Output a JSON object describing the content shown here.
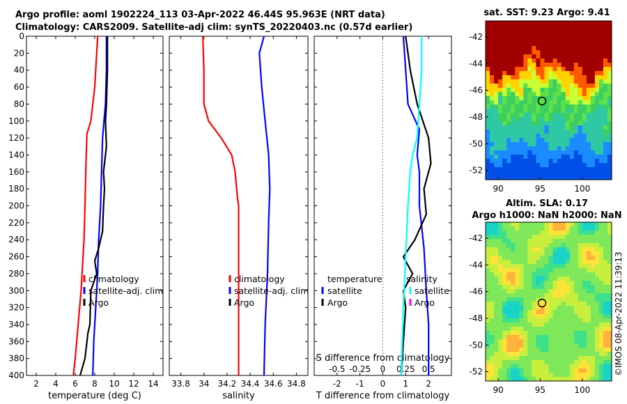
{
  "header": {
    "title_line1": "Argo profile: aoml 1902224_113 03-Apr-2022 46.44S 95.963E (NRT data)",
    "title_line2": "Climatology: CARS2009. Satellite-adj clim: synTS_20220403.nc (0.57d earlier)"
  },
  "colors": {
    "climatology": "#ff0000",
    "satellite": "#0000ff",
    "argo": "#000000",
    "argo_salinity": "#00ffff",
    "satellite_salinity_marker": "#ff00ff"
  },
  "footer": {
    "stamp": "©IMOS 08-Apr-2022 11:39:13"
  },
  "chart_data": [
    {
      "id": "temperature",
      "type": "line",
      "xlabel": "temperature (deg C)",
      "xlim": [
        1,
        15
      ],
      "xticks": [
        2,
        4,
        6,
        8,
        10,
        12,
        14
      ],
      "ylim": [
        0,
        400
      ],
      "yreversed": true,
      "yticks": [
        0,
        20,
        40,
        60,
        80,
        100,
        120,
        140,
        160,
        180,
        200,
        220,
        240,
        260,
        280,
        300,
        320,
        340,
        360,
        380,
        400
      ],
      "legend": [
        "climatology",
        "satellite-adj. clim",
        "Argo"
      ],
      "series": [
        {
          "name": "climatology",
          "color": "#ff0000",
          "points": [
            [
              8.3,
              0
            ],
            [
              8.2,
              20
            ],
            [
              8.1,
              40
            ],
            [
              8.0,
              60
            ],
            [
              7.8,
              80
            ],
            [
              7.6,
              100
            ],
            [
              7.2,
              115
            ],
            [
              7.1,
              150
            ],
            [
              7.0,
              200
            ],
            [
              6.9,
              240
            ],
            [
              6.8,
              260
            ],
            [
              6.6,
              300
            ],
            [
              6.3,
              340
            ],
            [
              6.0,
              380
            ],
            [
              5.8,
              400
            ]
          ]
        },
        {
          "name": "satellite-adj. clim",
          "color": "#0000ff",
          "points": [
            [
              9.2,
              0
            ],
            [
              9.2,
              40
            ],
            [
              9.1,
              80
            ],
            [
              8.8,
              120
            ],
            [
              8.7,
              160
            ],
            [
              8.6,
              200
            ],
            [
              8.4,
              240
            ],
            [
              8.3,
              280
            ],
            [
              8.1,
              320
            ],
            [
              7.9,
              360
            ],
            [
              7.8,
              400
            ]
          ]
        },
        {
          "name": "Argo",
          "color": "#000000",
          "points": [
            [
              9.3,
              0
            ],
            [
              9.3,
              40
            ],
            [
              9.2,
              80
            ],
            [
              9.1,
              100
            ],
            [
              9.2,
              130
            ],
            [
              8.9,
              160
            ],
            [
              9.0,
              180
            ],
            [
              8.9,
              200
            ],
            [
              8.8,
              230
            ],
            [
              8.4,
              250
            ],
            [
              8.0,
              265
            ],
            [
              8.2,
              280
            ],
            [
              7.6,
              300
            ],
            [
              7.5,
              340
            ],
            [
              7.3,
              350
            ],
            [
              7.0,
              380
            ],
            [
              6.5,
              400
            ]
          ]
        }
      ]
    },
    {
      "id": "salinity",
      "type": "line",
      "xlabel": "salinity",
      "xlim": [
        33.7,
        34.9
      ],
      "xticks": [
        33.8,
        34,
        34.2,
        34.4,
        34.6,
        34.8
      ],
      "ylim": [
        0,
        400
      ],
      "yreversed": true,
      "legend": [
        "climatology",
        "satellite-adj. clim",
        "Argo"
      ],
      "series": [
        {
          "name": "climatology",
          "color": "#ff0000",
          "points": [
            [
              33.99,
              0
            ],
            [
              34.0,
              40
            ],
            [
              34.0,
              80
            ],
            [
              34.04,
              100
            ],
            [
              34.15,
              120
            ],
            [
              34.24,
              140
            ],
            [
              34.27,
              160
            ],
            [
              34.29,
              190
            ],
            [
              34.3,
              200
            ],
            [
              34.3,
              250
            ],
            [
              34.3,
              400
            ]
          ]
        },
        {
          "name": "satellite-adj. clim",
          "color": "#0000ff",
          "points": [
            [
              34.52,
              0
            ],
            [
              34.48,
              20
            ],
            [
              34.5,
              60
            ],
            [
              34.53,
              100
            ],
            [
              34.56,
              140
            ],
            [
              34.57,
              180
            ],
            [
              34.56,
              220
            ],
            [
              34.55,
              280
            ],
            [
              34.53,
              340
            ],
            [
              34.52,
              400
            ]
          ]
        }
      ]
    },
    {
      "id": "difference",
      "type": "line",
      "xlabel": "T difference from climatology",
      "xlabel_top": "S difference from climatology",
      "xlim": [
        -3,
        3
      ],
      "xticks": [
        -2,
        -1,
        0,
        1,
        2
      ],
      "xticks_top": [
        "-0.5",
        "-0.25",
        "0",
        "0.25",
        "0.5"
      ],
      "ylim": [
        0,
        400
      ],
      "yreversed": true,
      "legend_left": [
        "temperature",
        "satellite",
        "Argo"
      ],
      "legend_right": [
        "salinity",
        "satellite",
        "Argo"
      ],
      "series": [
        {
          "name": "satellite T diff",
          "color": "#0000ff",
          "points": [
            [
              0.9,
              0
            ],
            [
              1.0,
              40
            ],
            [
              1.1,
              80
            ],
            [
              1.6,
              110
            ],
            [
              1.5,
              140
            ],
            [
              1.6,
              160
            ],
            [
              1.6,
              200
            ],
            [
              1.8,
              250
            ],
            [
              1.9,
              300
            ],
            [
              2.0,
              340
            ],
            [
              2.0,
              400
            ]
          ]
        },
        {
          "name": "Argo T diff",
          "color": "#000000",
          "points": [
            [
              1.0,
              0
            ],
            [
              1.2,
              40
            ],
            [
              1.5,
              80
            ],
            [
              2.0,
              120
            ],
            [
              2.1,
              150
            ],
            [
              1.8,
              180
            ],
            [
              1.9,
              210
            ],
            [
              1.4,
              240
            ],
            [
              0.9,
              260
            ],
            [
              1.3,
              280
            ],
            [
              0.9,
              300
            ],
            [
              1.0,
              320
            ],
            [
              0.9,
              360
            ],
            [
              0.8,
              400
            ]
          ]
        },
        {
          "name": "Argo S diff",
          "color": "#00ffff",
          "points": [
            [
              1.7,
              0
            ],
            [
              1.7,
              40
            ],
            [
              1.6,
              80
            ],
            [
              1.5,
              120
            ],
            [
              1.3,
              140
            ],
            [
              1.2,
              160
            ],
            [
              1.1,
              200
            ],
            [
              1.0,
              260
            ],
            [
              0.9,
              320
            ],
            [
              0.8,
              400
            ]
          ]
        }
      ]
    },
    {
      "id": "sst-map",
      "type": "heatmap",
      "title": "sat. SST: 9.23 Argo: 9.41",
      "xticks": [
        90,
        95,
        100
      ],
      "yticks": [
        -42,
        -44,
        -46,
        -48,
        -50,
        -52
      ],
      "marker": [
        96,
        -46.4
      ]
    },
    {
      "id": "sla-map",
      "type": "heatmap",
      "title_line1": "Altim. SLA: 0.17",
      "title_line2": "Argo h1000: NaN h2000: NaN",
      "xticks": [
        90,
        95,
        100
      ],
      "yticks": [
        -42,
        -44,
        -46,
        -48,
        -50,
        -52
      ],
      "marker": [
        96,
        -46.5
      ]
    }
  ]
}
